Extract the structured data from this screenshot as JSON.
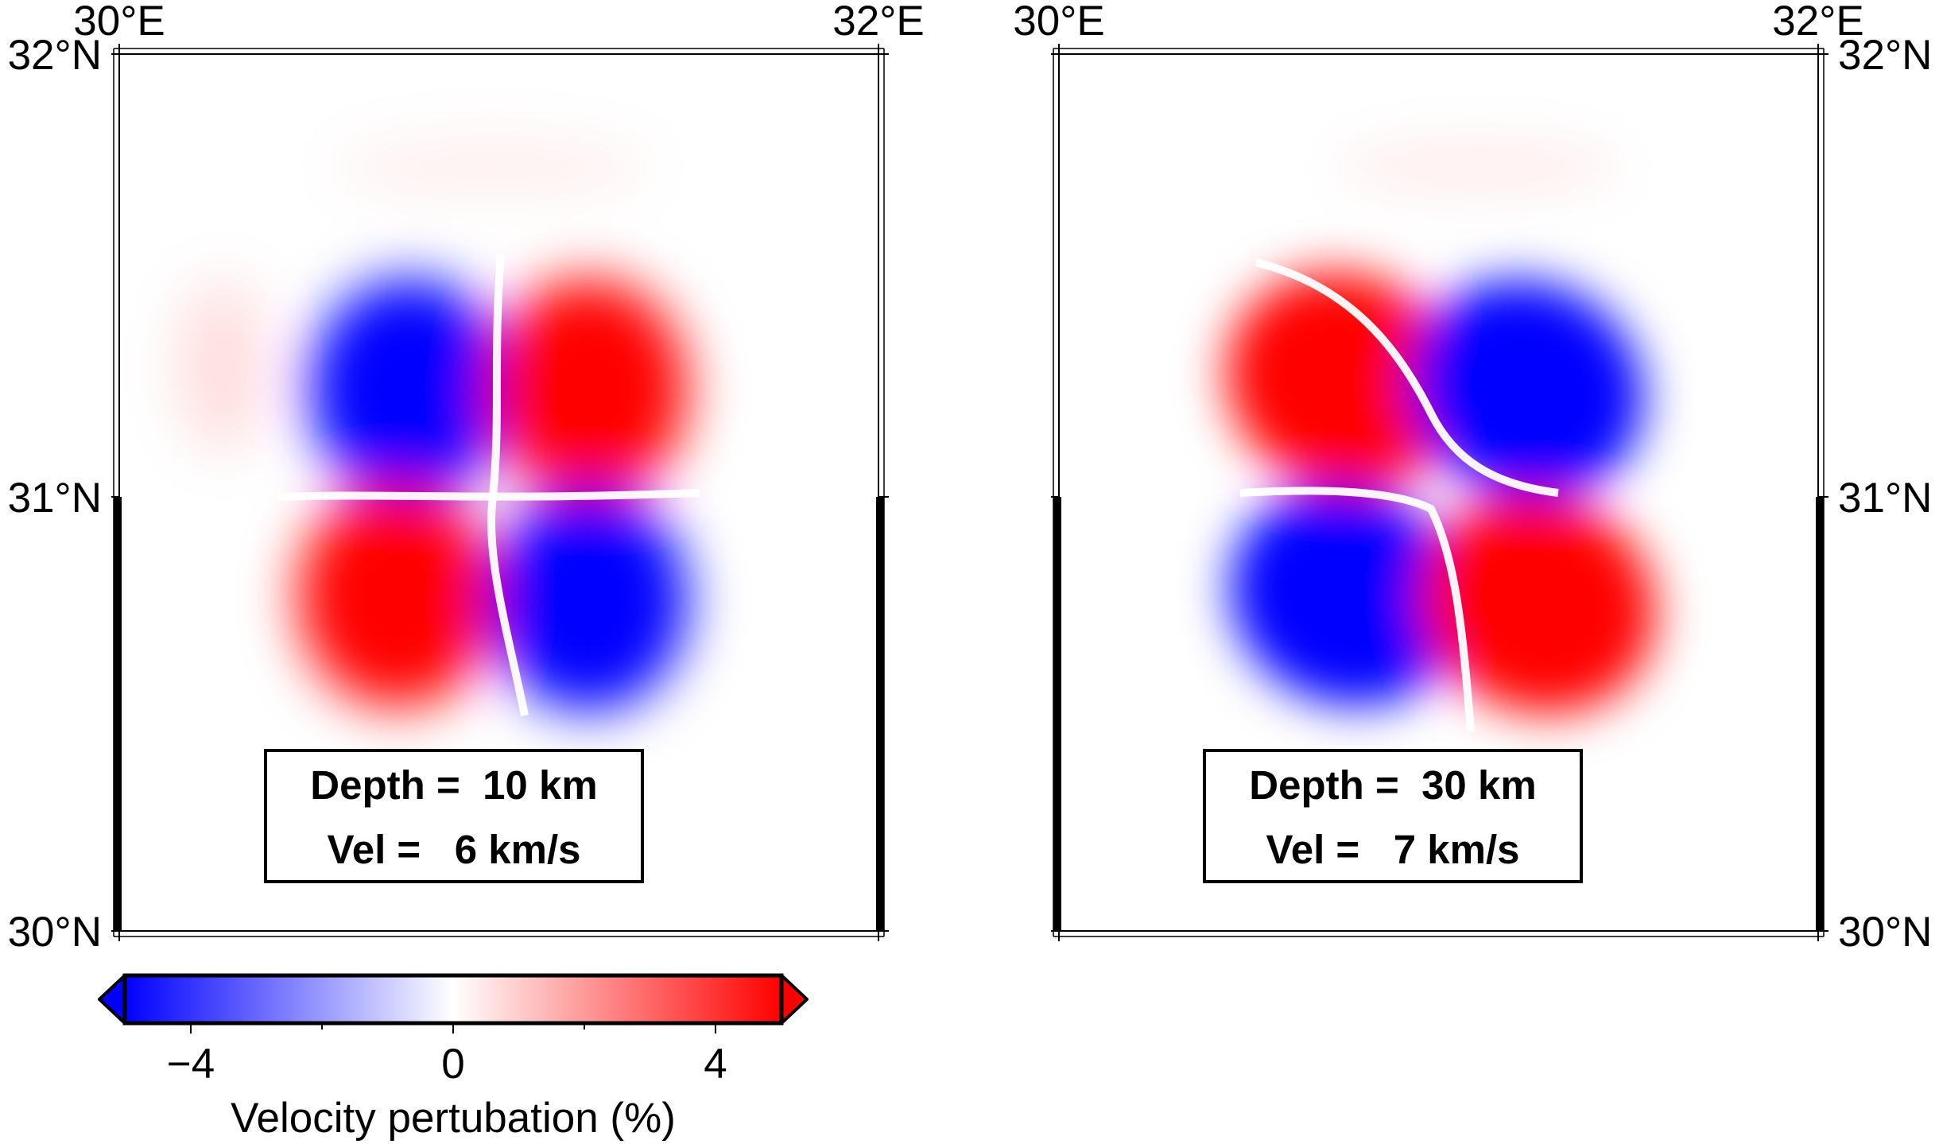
{
  "maps": [
    {
      "lon_labels": [
        "30°E",
        "32°E"
      ],
      "lat_labels": [
        "32°N",
        "31°N",
        "30°N"
      ],
      "info": {
        "depth": "Depth =  10 km",
        "vel": "Vel =   6 km/s"
      },
      "anomalies": [
        {
          "quadrant": "upper-left",
          "sign": "negative",
          "color": "#0000ff"
        },
        {
          "quadrant": "upper-right",
          "sign": "positive",
          "color": "#ff0000"
        },
        {
          "quadrant": "lower-left",
          "sign": "positive",
          "color": "#ff0000"
        },
        {
          "quadrant": "lower-right",
          "sign": "negative",
          "color": "#0000ff"
        }
      ]
    },
    {
      "lon_labels": [
        "30°E",
        "32°E"
      ],
      "lat_labels": [
        "32°N",
        "31°N",
        "30°N"
      ],
      "info": {
        "depth": "Depth =  30 km",
        "vel": "Vel =   7 km/s"
      },
      "anomalies": [
        {
          "quadrant": "upper-left",
          "sign": "positive",
          "color": "#ff0000"
        },
        {
          "quadrant": "upper-right",
          "sign": "negative",
          "color": "#0000ff"
        },
        {
          "quadrant": "lower-left",
          "sign": "negative",
          "color": "#0000ff"
        },
        {
          "quadrant": "lower-right",
          "sign": "positive",
          "color": "#ff0000"
        }
      ]
    }
  ],
  "colorbar": {
    "label": "Velocity pertubation (%)",
    "ticks": [
      "−4",
      "0",
      "4"
    ],
    "colors": {
      "min": "#0000ff",
      "mid": "#ffffff",
      "max": "#ff0000"
    }
  }
}
